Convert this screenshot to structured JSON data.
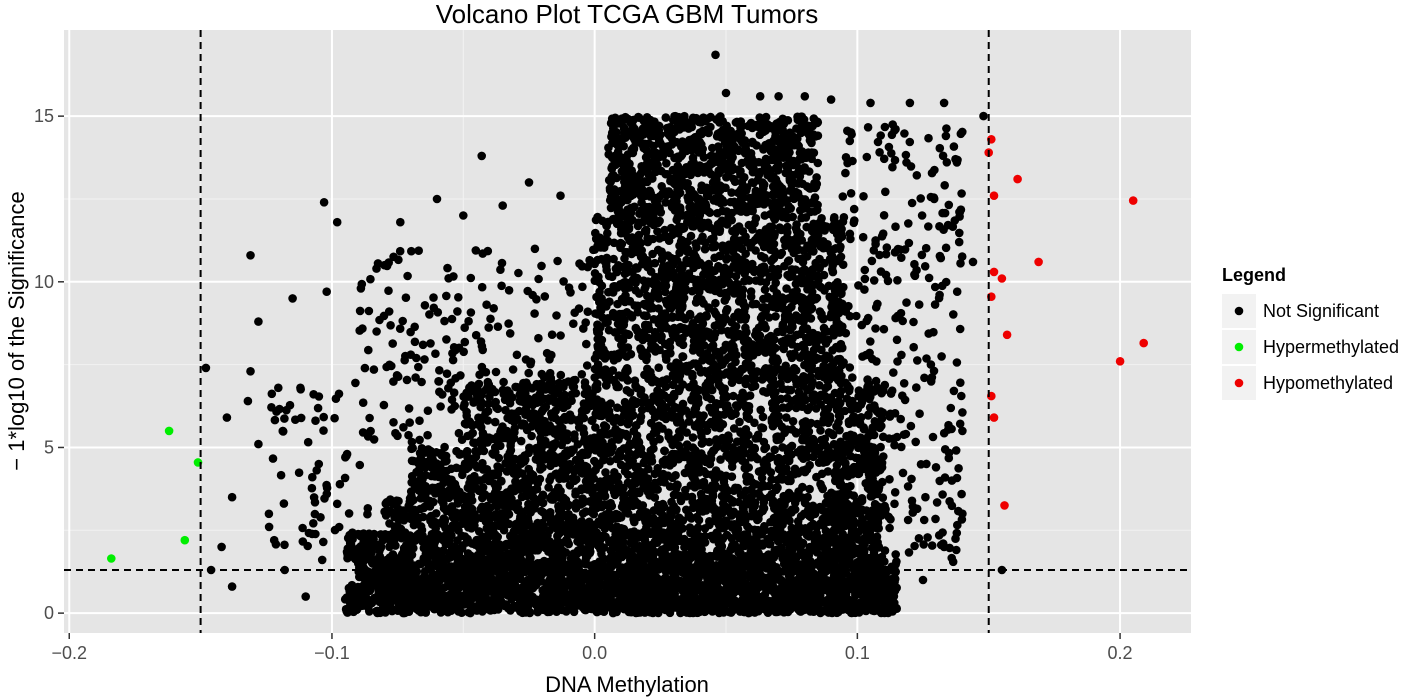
{
  "chart_data": {
    "type": "scatter",
    "title": "Volcano Plot TCGA GBM Tumors",
    "xlabel": "DNA Methylation",
    "ylabel": "− 1*log10 of the Significance",
    "xlim": [
      -0.202,
      0.227
    ],
    "ylim": [
      -0.6,
      17.6
    ],
    "x_ticks": [
      -0.2,
      -0.1,
      0.0,
      0.1,
      0.2
    ],
    "x_tick_labels": [
      "−0.2",
      "−0.1",
      "0.0",
      "0.1",
      "0.2"
    ],
    "y_ticks": [
      0,
      5,
      10,
      15
    ],
    "y_tick_labels": [
      "0",
      "5",
      "10",
      "15"
    ],
    "grid": true,
    "thresholds": {
      "x": [
        -0.15,
        0.15
      ],
      "y": 1.3,
      "style": "dashed"
    },
    "legend": {
      "title": "Legend",
      "placement": "right",
      "entries": [
        "Not Significant",
        "Hypermethylated",
        "Hypomethylated"
      ]
    },
    "colors": {
      "panel_bg": "#e5e5e5",
      "grid_major": "#ffffff",
      "grid_minor": "#f2f2f2",
      "not_significant": "#000000",
      "hypermethylated": "#00ee00",
      "hypomethylated": "#ee0000"
    },
    "series": [
      {
        "name": "Not Significant",
        "points": [
          [
            0.046,
            16.85
          ],
          [
            0.063,
            15.6
          ],
          [
            0.07,
            15.6
          ],
          [
            0.08,
            15.6
          ],
          [
            0.09,
            15.5
          ],
          [
            0.05,
            15.7
          ],
          [
            0.12,
            15.4
          ],
          [
            0.133,
            15.4
          ],
          [
            0.105,
            15.4
          ],
          [
            0.148,
            15.0
          ],
          [
            -0.043,
            13.8
          ],
          [
            -0.103,
            12.4
          ],
          [
            -0.098,
            11.8
          ],
          [
            -0.025,
            13.0
          ],
          [
            -0.013,
            12.6
          ],
          [
            -0.131,
            10.8
          ],
          [
            -0.128,
            8.8
          ],
          [
            -0.131,
            7.3
          ],
          [
            -0.148,
            7.4
          ],
          [
            -0.132,
            6.4
          ],
          [
            -0.128,
            5.1
          ],
          [
            -0.14,
            5.9
          ],
          [
            -0.115,
            9.5
          ],
          [
            -0.102,
            9.7
          ],
          [
            -0.089,
            9.8
          ],
          [
            -0.138,
            3.5
          ],
          [
            -0.142,
            2.0
          ],
          [
            -0.146,
            1.3
          ],
          [
            -0.138,
            0.8
          ],
          [
            -0.122,
            2.2
          ],
          [
            -0.118,
            1.3
          ],
          [
            -0.11,
            0.5
          ],
          [
            -0.105,
            4.5
          ],
          [
            -0.112,
            6.8
          ],
          [
            -0.098,
            3.3
          ],
          [
            -0.09,
            1.5
          ],
          [
            -0.092,
            0.3
          ],
          [
            0.155,
            1.3
          ],
          [
            0.14,
            5.5
          ],
          [
            0.144,
            10.6
          ],
          [
            0.139,
            12.1
          ],
          [
            0.138,
            9.7
          ],
          [
            0.128,
            7.5
          ],
          [
            0.136,
            4.0
          ],
          [
            0.133,
            2.0
          ],
          [
            0.14,
            3.0
          ],
          [
            0.125,
            1.0
          ],
          [
            -0.08,
            10.5
          ],
          [
            -0.074,
            11.8
          ],
          [
            -0.06,
            12.5
          ],
          [
            -0.05,
            12.0
          ],
          [
            -0.035,
            12.3
          ],
          [
            -0.083,
            8.5
          ],
          [
            -0.07,
            7.8
          ]
        ],
        "clouds": [
          {
            "x_range": [
              -0.095,
              0.115
            ],
            "y_range": [
              0.0,
              0.9
            ],
            "n": 1500
          },
          {
            "x_range": [
              -0.09,
              0.115
            ],
            "y_range": [
              0.9,
              1.6
            ],
            "n": 950
          },
          {
            "x_range": [
              -0.095,
              0.11
            ],
            "y_range": [
              1.6,
              2.4
            ],
            "n": 750
          },
          {
            "x_range": [
              -0.08,
              0.11
            ],
            "y_range": [
              2.4,
              3.5
            ],
            "n": 720
          },
          {
            "x_range": [
              -0.07,
              0.11
            ],
            "y_range": [
              3.5,
              5.0
            ],
            "n": 760
          },
          {
            "x_range": [
              -0.05,
              0.11
            ],
            "y_range": [
              5.0,
              7.0
            ],
            "n": 760
          },
          {
            "x_range": [
              0.0,
              0.095
            ],
            "y_range": [
              7.0,
              12.0
            ],
            "n": 1300
          },
          {
            "x_range": [
              0.005,
              0.085
            ],
            "y_range": [
              12.0,
              15.0
            ],
            "n": 850
          },
          {
            "x_range": [
              -0.09,
              0.0
            ],
            "y_range": [
              5.0,
              11.0
            ],
            "n": 220
          },
          {
            "x_range": [
              0.09,
              0.14
            ],
            "y_range": [
              1.5,
              14.9
            ],
            "n": 330
          },
          {
            "x_range": [
              -0.125,
              -0.085
            ],
            "y_range": [
              1.5,
              7.0
            ],
            "n": 70
          }
        ]
      },
      {
        "name": "Hypermethylated",
        "points": [
          [
            -0.162,
            5.5
          ],
          [
            -0.151,
            4.55
          ],
          [
            -0.156,
            2.2
          ],
          [
            -0.184,
            1.65
          ]
        ]
      },
      {
        "name": "Hypomethylated",
        "points": [
          [
            0.151,
            14.3
          ],
          [
            0.15,
            13.9
          ],
          [
            0.152,
            12.6
          ],
          [
            0.161,
            13.1
          ],
          [
            0.205,
            12.45
          ],
          [
            0.152,
            10.3
          ],
          [
            0.155,
            10.1
          ],
          [
            0.169,
            10.6
          ],
          [
            0.151,
            9.55
          ],
          [
            0.157,
            8.4
          ],
          [
            0.209,
            8.15
          ],
          [
            0.2,
            7.6
          ],
          [
            0.151,
            6.55
          ],
          [
            0.152,
            5.9
          ],
          [
            0.156,
            3.25
          ]
        ]
      }
    ]
  }
}
